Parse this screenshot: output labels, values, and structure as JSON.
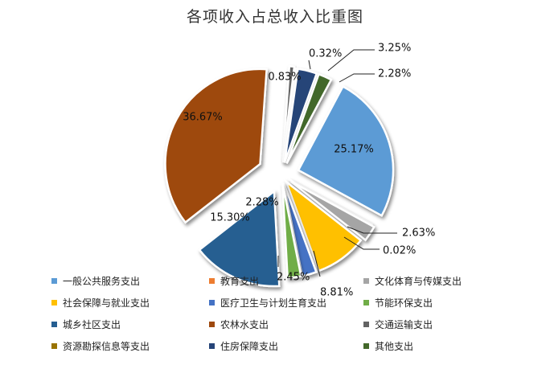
{
  "chart_data": {
    "type": "pie",
    "title": "各项收入占总收入比重图",
    "slices": [
      {
        "name": "一般公共服务支出",
        "value": 25.17,
        "label": "25.17%",
        "color": "#5B9BD5"
      },
      {
        "name": "教育支出",
        "value": 0.02,
        "label": "0.02%",
        "color": "#ED7D31"
      },
      {
        "name": "文化体育与传媒支出",
        "value": 2.63,
        "label": "2.63%",
        "color": "#A5A5A5"
      },
      {
        "name": "社会保障与就业支出",
        "value": 8.81,
        "label": "8.81%",
        "color": "#FFC000"
      },
      {
        "name": "医疗卫生与计划生育支出",
        "value": 2.45,
        "label": "2.45%",
        "color": "#4472C4"
      },
      {
        "name": "节能环保支出",
        "value": 2.28,
        "label": "2.28%",
        "color": "#70AD47"
      },
      {
        "name": "城乡社区支出",
        "value": 15.3,
        "label": "15.30%",
        "color": "#255E91"
      },
      {
        "name": "农林水支出",
        "value": 36.67,
        "label": "36.67%",
        "color": "#9E480E"
      },
      {
        "name": "交通运输支出",
        "value": 0.83,
        "label": "0.83%",
        "color": "#636363"
      },
      {
        "name": "资源勘探信息等支出",
        "value": 0.32,
        "label": "0.32%",
        "color": "#997300"
      },
      {
        "name": "住房保障支出",
        "value": 3.25,
        "label": "3.25%",
        "color": "#264478"
      },
      {
        "name": "其他支出",
        "value": 2.28,
        "label": "2.28%",
        "color": "#43682B"
      }
    ],
    "legend_position": "bottom",
    "legend_columns": 3
  }
}
